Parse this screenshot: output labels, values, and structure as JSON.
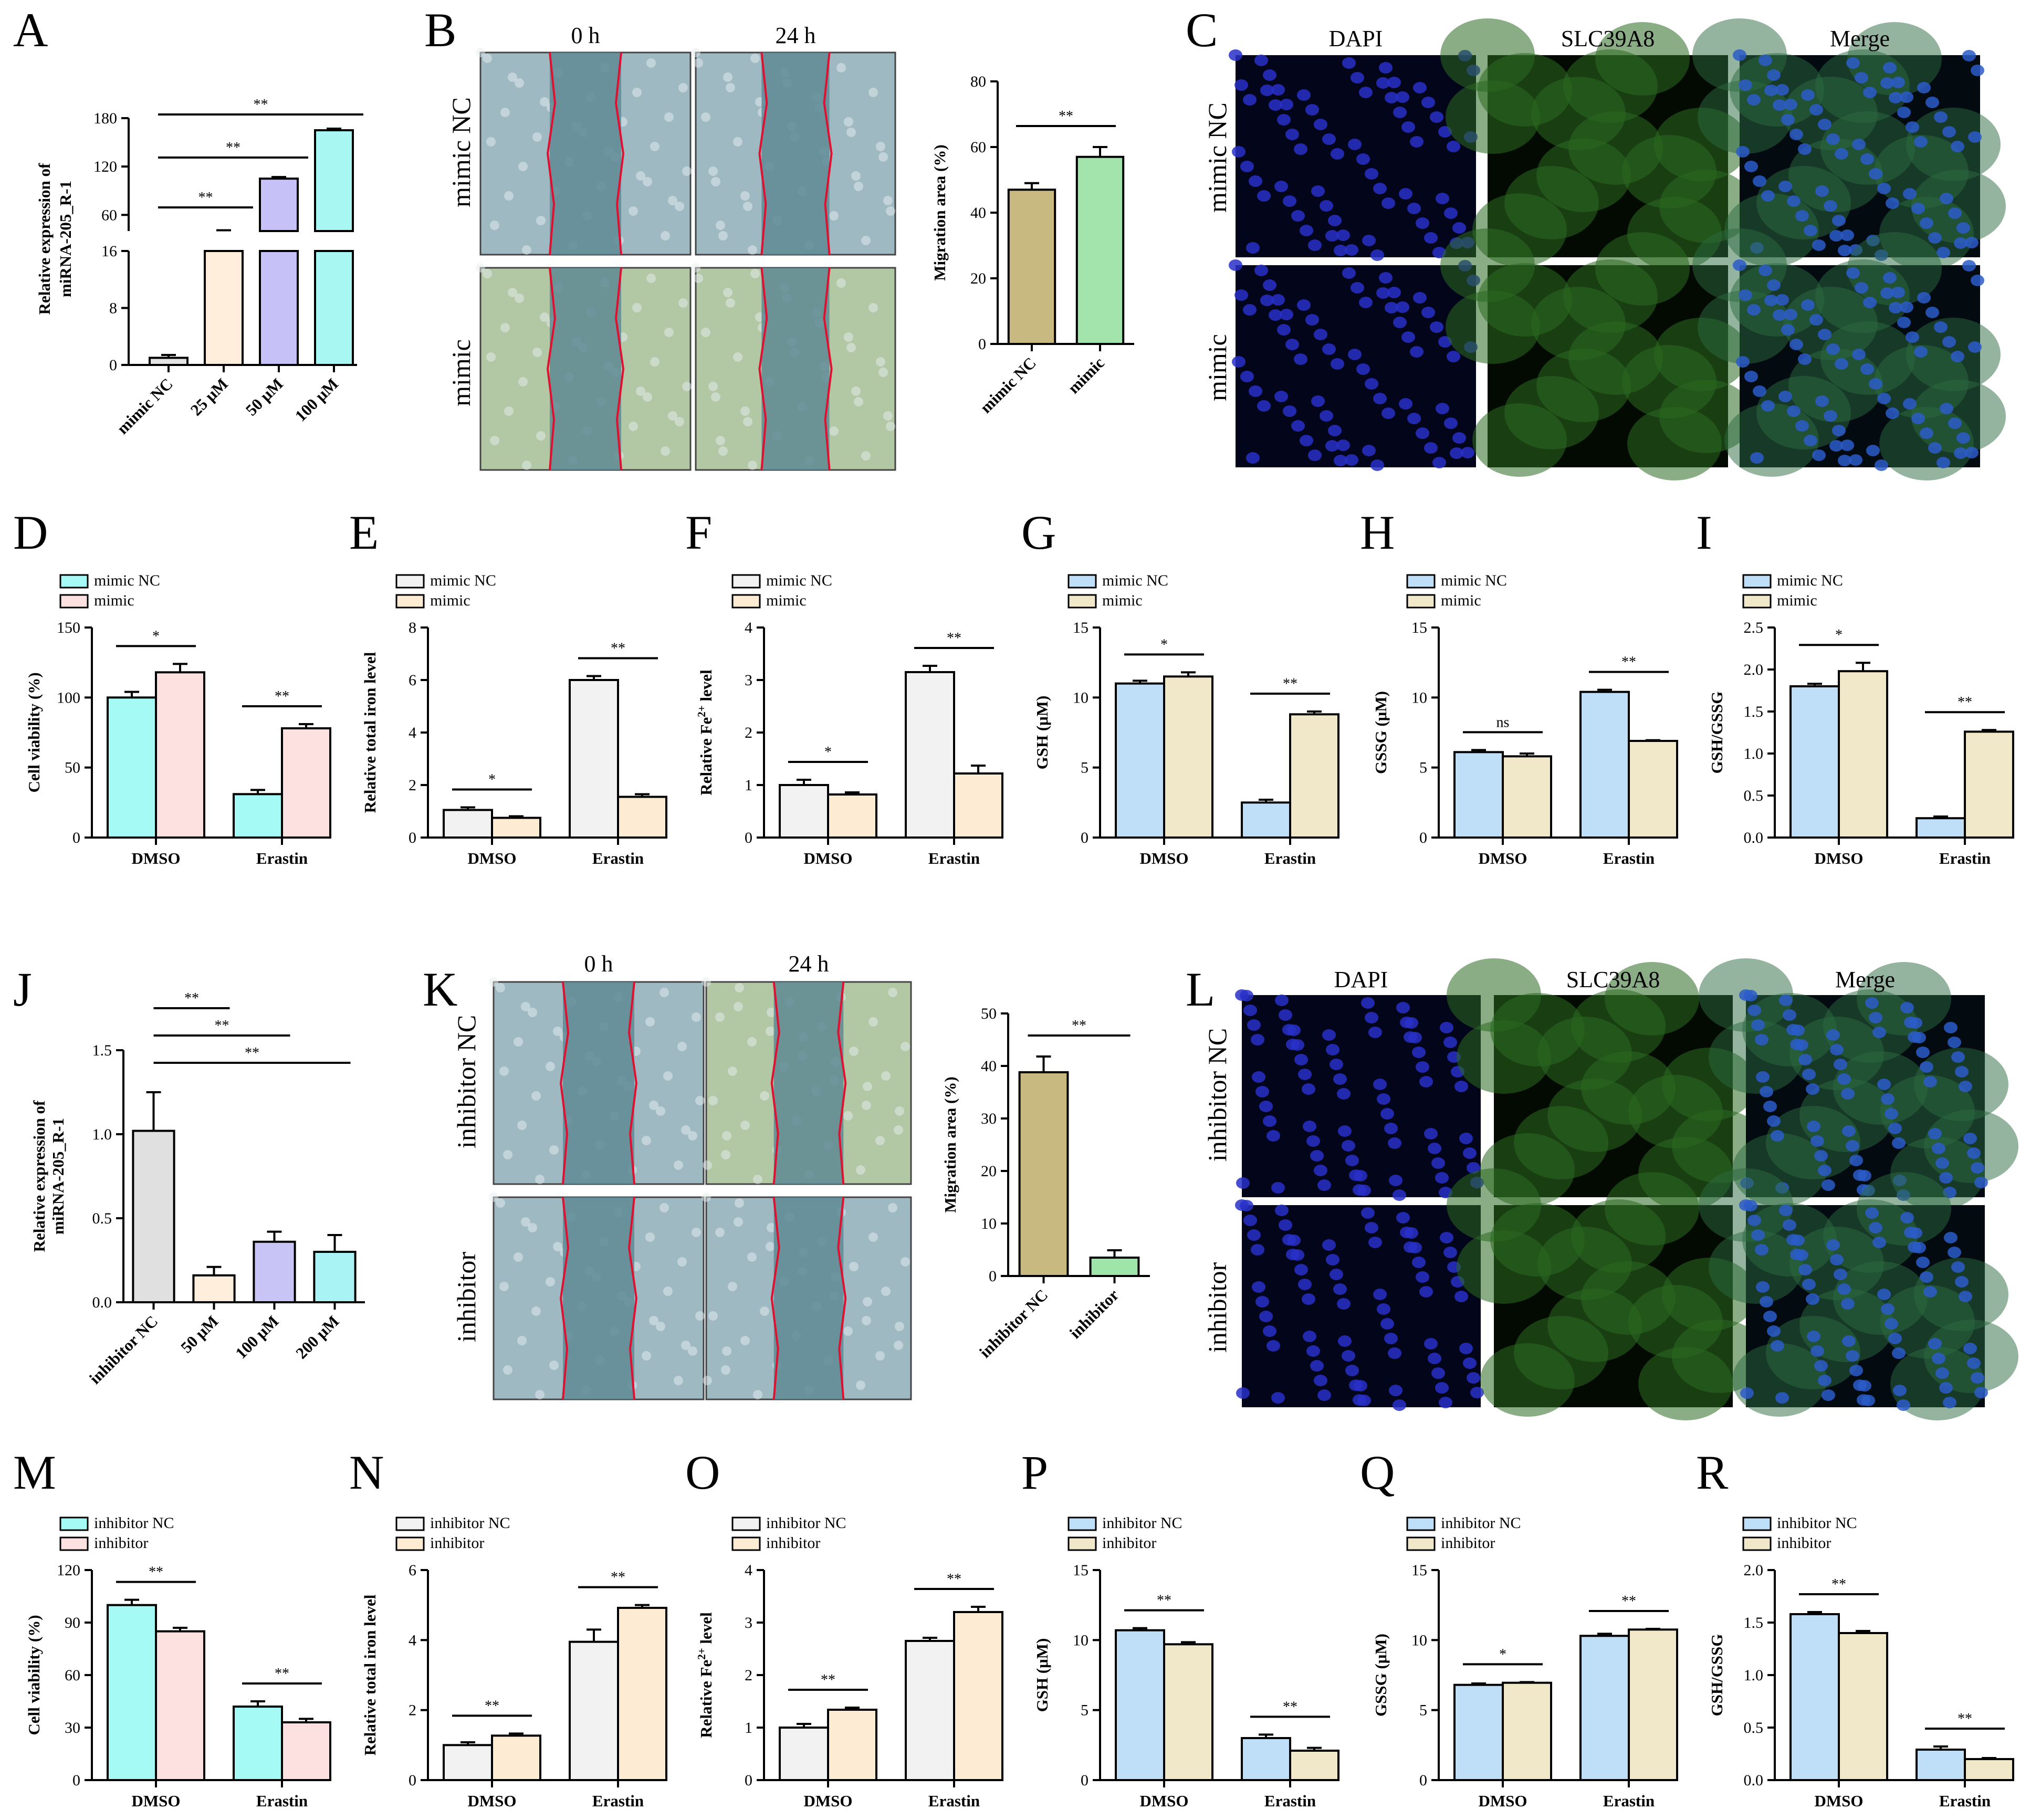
{
  "colors": {
    "mimic_nc_gray": "#F2F2F2",
    "mimic_cream": "#FDEBD3",
    "cyan": "#A6FAF6",
    "pink": "#FDE0E0",
    "blue": "#BFDFF9",
    "tan": "#F0E8C8",
    "peach": "#FFEEDC",
    "lavender": "#C6C2F7",
    "cyan2": "#A8F7F2",
    "gray2": "#E0E0E0",
    "lavender2": "#C8C4F6",
    "cyan3": "#A9F3F4",
    "olive": "#C8B980",
    "green": "#A3E3AC",
    "green2": "#9FE4A9"
  },
  "images": {
    "B": {
      "col_labels": [
        "0 h",
        "24 h"
      ],
      "row_labels": [
        "mimic NC",
        "mimic"
      ]
    },
    "C": {
      "col_labels": [
        "DAPI",
        "SLC39A8",
        "Merge"
      ],
      "row_labels": [
        "mimic NC",
        "mimic"
      ]
    },
    "K": {
      "col_labels": [
        "0 h",
        "24 h"
      ],
      "row_labels": [
        "inhibitor NC",
        "inhibitor"
      ]
    },
    "L": {
      "col_labels": [
        "DAPI",
        "SLC39A8",
        "Merge"
      ],
      "row_labels": [
        "inhibitor NC",
        "inhibitor"
      ]
    }
  },
  "chart_data": [
    {
      "panel": "A",
      "type": "bar",
      "ylabel": "Relative expression of miRNA-205_R-1",
      "categories": [
        "mimic NC",
        "25 μM",
        "50 μM",
        "100 μM"
      ],
      "values": [
        1,
        40,
        105,
        165
      ],
      "errors": [
        0.4,
        1,
        2,
        2
      ],
      "lower_ticks": [
        "0",
        "8",
        "16"
      ],
      "upper_ticks": [
        "60",
        "120",
        "180"
      ],
      "axis_break": true,
      "significance": [
        "**",
        "**",
        "**"
      ]
    },
    {
      "panel": "B",
      "type": "bar",
      "ylabel": "Migration area (%)",
      "categories": [
        "mimic NC",
        "mimic"
      ],
      "values": [
        47,
        57
      ],
      "errors": [
        2,
        3
      ],
      "ylim": [
        0,
        80
      ],
      "ticks": [
        "0",
        "20",
        "40",
        "60",
        "80"
      ],
      "significance": [
        "**"
      ]
    },
    {
      "panel": "D",
      "type": "bar",
      "ylabel": "Cell viability (%)",
      "groups": [
        "DMSO",
        "Erastin"
      ],
      "series": [
        {
          "name": "mimic NC",
          "values": [
            100,
            31
          ],
          "errors": [
            4,
            3
          ]
        },
        {
          "name": "mimic",
          "values": [
            118,
            78
          ],
          "errors": [
            6,
            3
          ]
        }
      ],
      "ylim": [
        0,
        150
      ],
      "ticks": [
        "0",
        "50",
        "100",
        "150"
      ],
      "significance": [
        "*",
        "**"
      ]
    },
    {
      "panel": "E",
      "type": "bar",
      "ylabel": "Relative total iron level",
      "groups": [
        "DMSO",
        "Erastin"
      ],
      "series": [
        {
          "name": "mimic NC",
          "values": [
            1.05,
            6.0
          ],
          "errors": [
            0.1,
            0.15
          ]
        },
        {
          "name": "mimic",
          "values": [
            0.75,
            1.55
          ],
          "errors": [
            0.06,
            0.1
          ]
        }
      ],
      "ylim": [
        0,
        8
      ],
      "ticks": [
        "0",
        "2",
        "4",
        "6",
        "8"
      ],
      "significance": [
        "*",
        "**"
      ]
    },
    {
      "panel": "F",
      "type": "bar",
      "ylabel": "Relative Fe level",
      "ylabel_sup": "2+",
      "ylabel_prefix": "Relative Fe",
      "ylabel_suffix": " level",
      "groups": [
        "DMSO",
        "Erastin"
      ],
      "series": [
        {
          "name": "mimic NC",
          "values": [
            1.0,
            3.15
          ],
          "errors": [
            0.1,
            0.12
          ]
        },
        {
          "name": "mimic",
          "values": [
            0.82,
            1.22
          ],
          "errors": [
            0.04,
            0.15
          ]
        }
      ],
      "ylim": [
        0,
        4
      ],
      "ticks": [
        "0",
        "1",
        "2",
        "3",
        "4"
      ],
      "significance": [
        "*",
        "**"
      ]
    },
    {
      "panel": "G",
      "type": "bar",
      "ylabel": "GSH (μM)",
      "groups": [
        "DMSO",
        "Erastin"
      ],
      "series": [
        {
          "name": "mimic NC",
          "values": [
            11.0,
            2.5
          ],
          "errors": [
            0.2,
            0.2
          ]
        },
        {
          "name": "mimic",
          "values": [
            11.5,
            8.8
          ],
          "errors": [
            0.3,
            0.2
          ]
        }
      ],
      "ylim": [
        0,
        15
      ],
      "ticks": [
        "0",
        "5",
        "10",
        "15"
      ],
      "significance": [
        "*",
        "**"
      ]
    },
    {
      "panel": "H",
      "type": "bar",
      "ylabel": "GSSG (μM)",
      "groups": [
        "DMSO",
        "Erastin"
      ],
      "series": [
        {
          "name": "mimic NC",
          "values": [
            6.1,
            10.4
          ],
          "errors": [
            0.15,
            0.15
          ]
        },
        {
          "name": "mimic",
          "values": [
            5.8,
            6.9
          ],
          "errors": [
            0.2,
            0.05
          ]
        }
      ],
      "ylim": [
        0,
        15
      ],
      "ticks": [
        "0",
        "5",
        "10",
        "15"
      ],
      "significance": [
        "ns",
        "**"
      ]
    },
    {
      "panel": "I",
      "type": "bar",
      "ylabel": "GSH/GSSG",
      "groups": [
        "DMSO",
        "Erastin"
      ],
      "series": [
        {
          "name": "mimic NC",
          "values": [
            1.8,
            0.23
          ],
          "errors": [
            0.03,
            0.02
          ]
        },
        {
          "name": "mimic",
          "values": [
            1.98,
            1.26
          ],
          "errors": [
            0.1,
            0.02
          ]
        }
      ],
      "ylim": [
        0,
        2.5
      ],
      "ticks": [
        "0.0",
        "0.5",
        "1.0",
        "1.5",
        "2.0",
        "2.5"
      ],
      "significance": [
        "*",
        "**"
      ]
    },
    {
      "panel": "J",
      "type": "bar",
      "ylabel": "Relative expression of miRNA-205_R-1",
      "categories": [
        "inhibitor NC",
        "50 μM",
        "100 μM",
        "200 μM"
      ],
      "values": [
        1.02,
        0.16,
        0.36,
        0.3
      ],
      "errors": [
        0.23,
        0.05,
        0.06,
        0.1
      ],
      "ylim": [
        0,
        1.5
      ],
      "ticks": [
        "0.0",
        "0.5",
        "1.0",
        "1.5"
      ],
      "significance": [
        "**",
        "**",
        "**"
      ]
    },
    {
      "panel": "K",
      "type": "bar",
      "ylabel": "Migration area (%)",
      "categories": [
        "inhibitor NC",
        "inhibitor"
      ],
      "values": [
        38.8,
        3.5
      ],
      "errors": [
        3,
        1.4
      ],
      "ylim": [
        0,
        50
      ],
      "ticks": [
        "0",
        "10",
        "20",
        "30",
        "40",
        "50"
      ],
      "significance": [
        "**"
      ]
    },
    {
      "panel": "M",
      "type": "bar",
      "ylabel": "Cell viability (%)",
      "groups": [
        "DMSO",
        "Erastin"
      ],
      "series": [
        {
          "name": "inhibitor NC",
          "values": [
            100,
            42
          ],
          "errors": [
            3,
            3
          ]
        },
        {
          "name": "inhibitor",
          "values": [
            85,
            33
          ],
          "errors": [
            2,
            2
          ]
        }
      ],
      "ylim": [
        0,
        120
      ],
      "ticks": [
        "0",
        "30",
        "60",
        "90",
        "120"
      ],
      "significance": [
        "**",
        "**"
      ]
    },
    {
      "panel": "N",
      "type": "bar",
      "ylabel": "Relative total iron level",
      "groups": [
        "DMSO",
        "Erastin"
      ],
      "series": [
        {
          "name": "inhibitor NC",
          "values": [
            1.0,
            3.95
          ],
          "errors": [
            0.08,
            0.35
          ]
        },
        {
          "name": "inhibitor",
          "values": [
            1.27,
            4.92
          ],
          "errors": [
            0.06,
            0.08
          ]
        }
      ],
      "ylim": [
        0,
        6
      ],
      "ticks": [
        "0",
        "2",
        "4",
        "6"
      ],
      "significance": [
        "**",
        "**"
      ]
    },
    {
      "panel": "O",
      "type": "bar",
      "ylabel": "Relative Fe level",
      "ylabel_sup": "2+",
      "ylabel_prefix": "Relative Fe",
      "ylabel_suffix": " level",
      "groups": [
        "DMSO",
        "Erastin"
      ],
      "series": [
        {
          "name": "inhibitor NC",
          "values": [
            1.0,
            2.65
          ],
          "errors": [
            0.07,
            0.06
          ]
        },
        {
          "name": "inhibitor",
          "values": [
            1.34,
            3.2
          ],
          "errors": [
            0.04,
            0.1
          ]
        }
      ],
      "ylim": [
        0,
        4
      ],
      "ticks": [
        "0",
        "1",
        "2",
        "3",
        "4"
      ],
      "significance": [
        "**",
        "**"
      ]
    },
    {
      "panel": "P",
      "type": "bar",
      "ylabel": "GSH (μM)",
      "groups": [
        "DMSO",
        "Erastin"
      ],
      "series": [
        {
          "name": "inhibitor NC",
          "values": [
            10.7,
            3.0
          ],
          "errors": [
            0.15,
            0.25
          ]
        },
        {
          "name": "inhibitor",
          "values": [
            9.7,
            2.1
          ],
          "errors": [
            0.15,
            0.2
          ]
        }
      ],
      "ylim": [
        0,
        15
      ],
      "ticks": [
        "0",
        "5",
        "10",
        "15"
      ],
      "significance": [
        "**",
        "**"
      ]
    },
    {
      "panel": "Q",
      "type": "bar",
      "ylabel": "GSSG (μM)",
      "groups": [
        "DMSO",
        "Erastin"
      ],
      "series": [
        {
          "name": "inhibitor NC",
          "values": [
            6.8,
            10.3
          ],
          "errors": [
            0.1,
            0.15
          ]
        },
        {
          "name": "inhibitor",
          "values": [
            6.95,
            10.75
          ],
          "errors": [
            0.05,
            0.05
          ]
        }
      ],
      "ylim": [
        0,
        15
      ],
      "ticks": [
        "0",
        "5",
        "10",
        "15"
      ],
      "significance": [
        "*",
        "**"
      ]
    },
    {
      "panel": "R",
      "type": "bar",
      "ylabel": "GSH/GSSG",
      "groups": [
        "DMSO",
        "Erastin"
      ],
      "series": [
        {
          "name": "inhibitor NC",
          "values": [
            1.58,
            0.29
          ],
          "errors": [
            0.02,
            0.03
          ]
        },
        {
          "name": "inhibitor",
          "values": [
            1.4,
            0.2
          ],
          "errors": [
            0.02,
            0.01
          ]
        }
      ],
      "ylim": [
        0,
        2.0
      ],
      "ticks": [
        "0.0",
        "0.5",
        "1.0",
        "1.5",
        "2.0"
      ],
      "significance": [
        "**",
        "**"
      ]
    }
  ]
}
